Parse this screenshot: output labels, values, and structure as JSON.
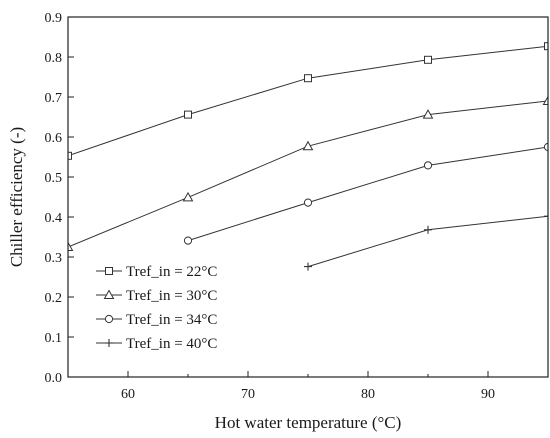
{
  "chart_data": {
    "type": "line",
    "xlabel": "Hot water temperature (°C)",
    "ylabel": "Chiller efficiency (-)",
    "xlim": [
      55,
      95
    ],
    "ylim": [
      0.0,
      0.9
    ],
    "xticks": [
      60,
      70,
      80,
      90
    ],
    "yticks": [
      0.0,
      0.1,
      0.2,
      0.3,
      0.4,
      0.5,
      0.6,
      0.7,
      0.8,
      0.9
    ],
    "xtick_labels": [
      "60",
      "70",
      "80",
      "90"
    ],
    "ytick_labels": [
      "0.0",
      "0.1",
      "0.2",
      "0.3",
      "0.4",
      "0.5",
      "0.6",
      "0.7",
      "0.8",
      "0.9"
    ],
    "grid": false,
    "legend_position": "bottom-left",
    "series": [
      {
        "name": "Tref_in = 22°C",
        "marker": "square",
        "x": [
          55,
          65,
          75,
          85,
          95
        ],
        "values": [
          0.553,
          0.656,
          0.747,
          0.793,
          0.827
        ]
      },
      {
        "name": "Tref_in = 30°C",
        "marker": "triangle",
        "x": [
          55,
          65,
          75,
          85,
          95
        ],
        "values": [
          0.325,
          0.449,
          0.577,
          0.656,
          0.69
        ]
      },
      {
        "name": "Tref_in = 34°C",
        "marker": "circle",
        "x": [
          65,
          75,
          85,
          95
        ],
        "values": [
          0.341,
          0.436,
          0.529,
          0.575
        ]
      },
      {
        "name": "Tref_in = 40°C",
        "marker": "plus",
        "x": [
          75,
          85,
          95
        ],
        "values": [
          0.276,
          0.368,
          0.402
        ]
      }
    ]
  }
}
